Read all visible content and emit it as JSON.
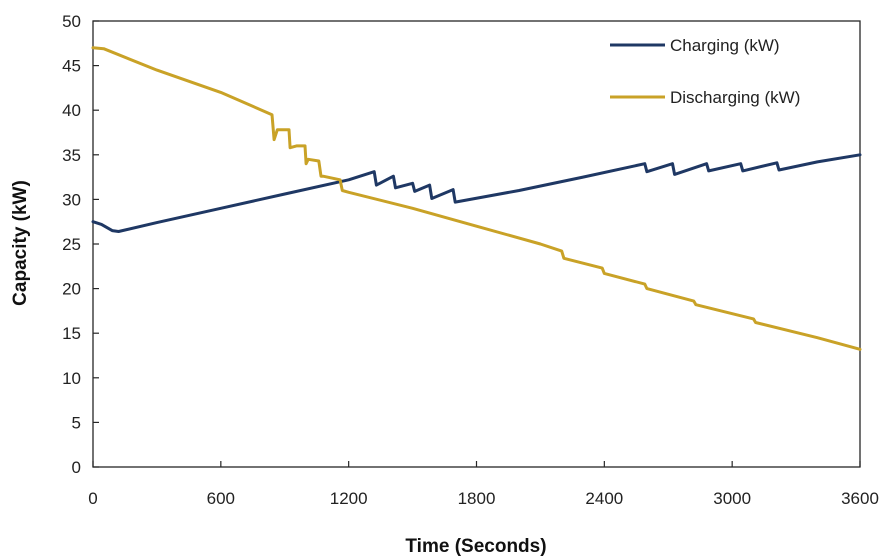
{
  "chart_data": {
    "type": "line",
    "xlabel": "Time (Seconds)",
    "ylabel": "Capacity (kW)",
    "xlim": [
      0,
      3600
    ],
    "ylim": [
      0,
      50
    ],
    "xticks": [
      0,
      600,
      1200,
      1800,
      2400,
      3000,
      3600
    ],
    "yticks": [
      0,
      5,
      10,
      15,
      20,
      25,
      30,
      35,
      40,
      45,
      50
    ],
    "grid": false,
    "legend_position": "top-right",
    "series": [
      {
        "name": "Charging (kW)",
        "color": "#1f3864",
        "points": [
          [
            0,
            27.5
          ],
          [
            40,
            27.2
          ],
          [
            90,
            26.5
          ],
          [
            120,
            26.4
          ],
          [
            300,
            27.4
          ],
          [
            600,
            29.0
          ],
          [
            900,
            30.6
          ],
          [
            1200,
            32.2
          ],
          [
            1320,
            33.1
          ],
          [
            1330,
            31.6
          ],
          [
            1410,
            32.6
          ],
          [
            1420,
            31.3
          ],
          [
            1500,
            31.8
          ],
          [
            1510,
            30.9
          ],
          [
            1580,
            31.6
          ],
          [
            1590,
            30.1
          ],
          [
            1690,
            31.1
          ],
          [
            1700,
            29.7
          ],
          [
            2000,
            31.0
          ],
          [
            2300,
            32.5
          ],
          [
            2590,
            34.0
          ],
          [
            2600,
            33.1
          ],
          [
            2720,
            34.0
          ],
          [
            2730,
            32.8
          ],
          [
            2880,
            34.0
          ],
          [
            2890,
            33.2
          ],
          [
            3040,
            34.0
          ],
          [
            3050,
            33.2
          ],
          [
            3210,
            34.1
          ],
          [
            3220,
            33.3
          ],
          [
            3400,
            34.2
          ],
          [
            3600,
            35.0
          ]
        ]
      },
      {
        "name": "Discharging (kW)",
        "color": "#c9a227",
        "points": [
          [
            0,
            47.0
          ],
          [
            50,
            46.9
          ],
          [
            300,
            44.5
          ],
          [
            600,
            42.0
          ],
          [
            840,
            39.5
          ],
          [
            850,
            36.7
          ],
          [
            865,
            37.8
          ],
          [
            920,
            37.8
          ],
          [
            925,
            35.8
          ],
          [
            955,
            36.0
          ],
          [
            995,
            36.0
          ],
          [
            1000,
            34.0
          ],
          [
            1010,
            34.5
          ],
          [
            1060,
            34.3
          ],
          [
            1070,
            32.6
          ],
          [
            1080,
            32.6
          ],
          [
            1160,
            32.2
          ],
          [
            1170,
            31.0
          ],
          [
            1200,
            30.8
          ],
          [
            1500,
            29.0
          ],
          [
            1800,
            27.0
          ],
          [
            2100,
            25.0
          ],
          [
            2200,
            24.2
          ],
          [
            2210,
            23.4
          ],
          [
            2390,
            22.3
          ],
          [
            2400,
            21.7
          ],
          [
            2590,
            20.5
          ],
          [
            2600,
            20.0
          ],
          [
            2820,
            18.6
          ],
          [
            2830,
            18.2
          ],
          [
            3100,
            16.6
          ],
          [
            3110,
            16.2
          ],
          [
            3400,
            14.5
          ],
          [
            3600,
            13.2
          ]
        ]
      }
    ]
  }
}
